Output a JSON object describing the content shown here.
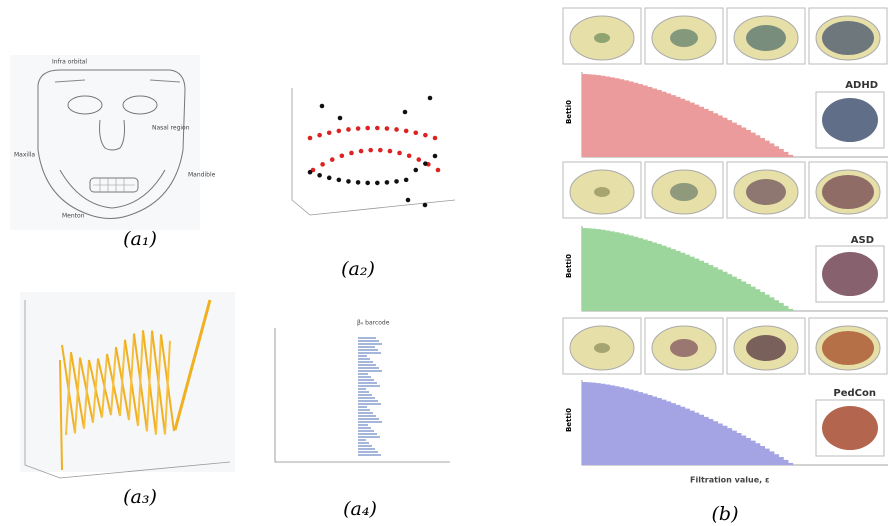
{
  "panels": {
    "a1": {
      "label": "(a₁)",
      "annotations": [
        "Infra orbital",
        "Maxilla",
        "Nasal region",
        "Mandible",
        "Menton"
      ]
    },
    "a2": {
      "label": "(a₂)"
    },
    "a3": {
      "label": "(a₃)"
    },
    "a4": {
      "label": "(a₄)",
      "legend": "β₀ barcode"
    },
    "b": {
      "label": "(b)",
      "groups": [
        "ADHD",
        "ASD",
        "PedCon"
      ],
      "y_label": "Betti0",
      "x_label": "Filtration value, ε"
    }
  }
}
